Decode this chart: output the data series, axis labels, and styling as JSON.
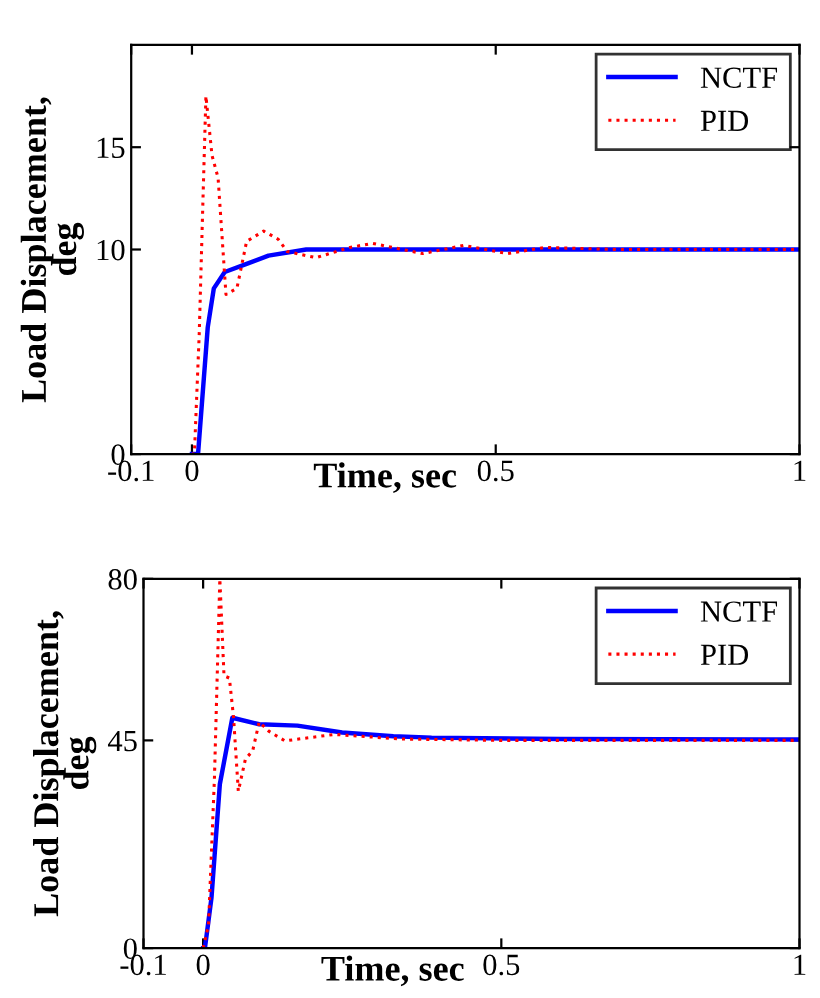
{
  "chart_data": [
    {
      "type": "line",
      "xlabel": "Time, sec",
      "ylabel": "Load Displacement,\ndeg",
      "xlim": [
        -0.1,
        1
      ],
      "ylim": [
        0,
        20
      ],
      "xticks": [
        -0.1,
        0,
        0.5,
        1
      ],
      "yticks": [
        0,
        10,
        15
      ],
      "legend": "top right",
      "grid": false,
      "series": [
        {
          "name": "NCTF",
          "color": "#0000ff",
          "line_style": "solid",
          "x": [
            0,
            0.01,
            0.026,
            0.036,
            0.054,
            0.09,
            0.126,
            0.188,
            0.3,
            0.5,
            0.7,
            1
          ],
          "values": [
            0,
            0,
            6.2,
            8.1,
            8.9,
            9.3,
            9.7,
            10,
            10,
            10,
            10,
            10
          ]
        },
        {
          "name": "PID",
          "color": "#ff0000",
          "line_style": "dotted",
          "x": [
            0,
            0.004,
            0.012,
            0.018,
            0.023,
            0.033,
            0.043,
            0.056,
            0.074,
            0.09,
            0.118,
            0.142,
            0.157,
            0.204,
            0.26,
            0.297,
            0.38,
            0.447,
            0.52,
            0.58,
            0.7,
            1
          ],
          "values": [
            0,
            0,
            5.9,
            12.3,
            17.5,
            14.6,
            13.5,
            7.8,
            8.1,
            10.4,
            10.9,
            10.5,
            9.9,
            9.6,
            10.1,
            10.3,
            9.8,
            10.2,
            9.8,
            10.1,
            10,
            10
          ]
        }
      ]
    },
    {
      "type": "line",
      "xlabel": "Time, sec",
      "ylabel": "Load Displacement,\ndeg",
      "xlim": [
        -0.1,
        1
      ],
      "ylim": [
        0,
        80
      ],
      "xticks": [
        -0.1,
        0,
        0.5,
        1
      ],
      "yticks": [
        0,
        45,
        80
      ],
      "legend": "top right",
      "grid": false,
      "series": [
        {
          "name": "NCTF",
          "color": "#0000ff",
          "line_style": "solid",
          "x": [
            0,
            0.003,
            0.014,
            0.028,
            0.049,
            0.094,
            0.158,
            0.233,
            0.319,
            0.383,
            0.6,
            1
          ],
          "values": [
            0,
            0,
            10.9,
            35.5,
            49.9,
            48.5,
            48.2,
            46.7,
            45.9,
            45.6,
            45.3,
            45.2
          ]
        },
        {
          "name": "PID",
          "color": "#ff0000",
          "line_style": "dotted",
          "x": [
            0,
            0.009,
            0.019,
            0.028,
            0.035,
            0.044,
            0.051,
            0.059,
            0.071,
            0.083,
            0.094,
            0.11,
            0.137,
            0.22,
            0.33,
            0.5,
            1
          ],
          "values": [
            0,
            5,
            37,
            80,
            59,
            58.5,
            50,
            34,
            41,
            42.7,
            49,
            47,
            44.9,
            46.3,
            45.3,
            45,
            45
          ]
        }
      ]
    }
  ]
}
